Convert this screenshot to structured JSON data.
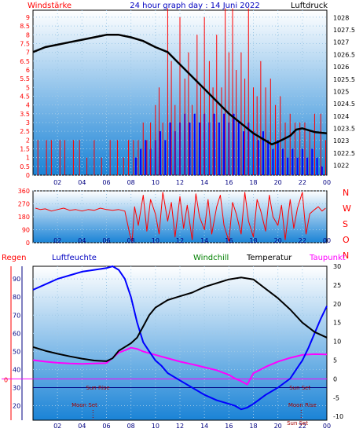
{
  "header": {
    "left_label": "Windstärke",
    "title": "24 hour graph day : 14 Juni 2022",
    "right_label": "Luftdruck"
  },
  "compass_labels": [
    "N",
    "W",
    "S",
    "O",
    "N"
  ],
  "bottom_legend": {
    "regen": "Regen",
    "luftfeuchte": "Luftfeuchte",
    "windchill": "Windchill",
    "temperatur": "Temperatur",
    "taupunkt": "Taupunkt"
  },
  "annotations": {
    "sun_rise": "Sun Rise",
    "moon_set": "Moon Set",
    "sun_set": "Sun Set",
    "moon_rise": "Moon Rise",
    "sun_set_short": "Sun Set",
    "zero_label": "0"
  },
  "colors": {
    "background_top": "#ffffff",
    "background_bottom": "#1a83d6",
    "wind": "#ff0000",
    "gust": "#0000ff",
    "pressure": "#000000",
    "direction": "#ff0000",
    "temperature": "#000000",
    "humidity": "#0000ff",
    "dewpoint": "#ff00ff",
    "windchill": "#008000",
    "rain_axis": "#ff0000",
    "humidity_axis": "#000080"
  },
  "chart_data": [
    {
      "type": "line",
      "x_ticks": [
        "02",
        "04",
        "06",
        "08",
        "10",
        "12",
        "14",
        "16",
        "18",
        "20",
        "22",
        "00"
      ],
      "x_range": [
        0,
        24
      ],
      "y_left": {
        "ticks": [
          "0",
          "0.5",
          "1",
          "1.5",
          "2",
          "2.5",
          "3",
          "3.5",
          "4",
          "4.5",
          "5",
          "5.5",
          "6",
          "6.5",
          "7",
          "7.5",
          "8",
          "8.5",
          "9"
        ],
        "range": [
          0,
          9.4
        ]
      },
      "y_right": {
        "ticks": [
          "1022",
          "1022.5",
          "1023",
          "1023.5",
          "1024",
          "1024.5",
          "1025",
          "1025.5",
          "1026",
          "1026.5",
          "1027",
          "1027.5",
          "1028"
        ],
        "range": [
          1021.6,
          1028.3
        ]
      },
      "series": [
        {
          "name": "Luftdruck",
          "x": [
            0.0,
            1,
            2,
            3,
            4,
            5,
            6,
            7,
            8,
            9,
            10,
            11,
            12,
            13,
            14,
            15,
            16,
            17,
            18,
            19,
            19.5,
            20,
            21,
            21.5,
            22,
            23,
            24
          ],
          "values": [
            1026.6,
            1026.8,
            1026.9,
            1027.0,
            1027.1,
            1027.2,
            1027.3,
            1027.3,
            1027.2,
            1027.05,
            1026.8,
            1026.6,
            1026.1,
            1025.6,
            1025.1,
            1024.6,
            1024.1,
            1023.7,
            1023.3,
            1023.0,
            1022.85,
            1022.95,
            1023.2,
            1023.45,
            1023.5,
            1023.35,
            1023.3
          ]
        },
        {
          "name": "Windstärke",
          "x": [
            0.4,
            1.1,
            1.5,
            2.2,
            2.6,
            3.3,
            3.8,
            4.4,
            5.0,
            5.6,
            6.3,
            6.9,
            7.4,
            7.8,
            8.2,
            8.6,
            9.0,
            9.3,
            9.6,
            10.0,
            10.3,
            10.6,
            11.0,
            11.3,
            11.6,
            12.0,
            12.4,
            12.7,
            13.0,
            13.4,
            13.7,
            14.0,
            14.4,
            14.7,
            15.0,
            15.4,
            15.7,
            16.0,
            16.3,
            16.6,
            17.0,
            17.3,
            17.6,
            18.0,
            18.3,
            18.6,
            19.0,
            19.4,
            19.8,
            20.2,
            20.6,
            21.0,
            21.4,
            21.8,
            22.2,
            22.6,
            23.0,
            23.5,
            23.9
          ],
          "values": [
            2,
            2,
            2,
            2,
            2,
            2,
            2,
            1,
            2,
            1,
            2,
            2,
            1,
            2,
            2,
            2,
            3,
            2,
            3,
            4,
            5,
            3,
            9.5,
            6.5,
            4,
            9,
            5.5,
            7,
            4,
            8,
            5,
            9,
            6.5,
            5,
            8,
            5,
            9.5,
            7,
            9.5,
            6,
            7,
            5.5,
            9.5,
            5,
            4.5,
            6.5,
            5,
            5.5,
            4,
            4.5,
            3,
            3.5,
            3,
            3,
            3,
            2.5,
            3.5,
            3.5,
            2
          ]
        },
        {
          "name": "Böen",
          "x": [
            8.4,
            8.8,
            9.2,
            9.6,
            10.0,
            10.4,
            10.8,
            11.2,
            11.6,
            12.0,
            12.4,
            12.8,
            13.2,
            13.6,
            14.0,
            14.4,
            14.8,
            15.2,
            15.6,
            16.0,
            16.4,
            16.8,
            17.2,
            17.6,
            18.0,
            18.4,
            18.8,
            19.2,
            19.6,
            20.0,
            20.4,
            20.8,
            21.2,
            21.6,
            22.0,
            22.4,
            22.8,
            23.2,
            23.6
          ],
          "values": [
            1,
            1.5,
            2,
            1.5,
            2,
            2.5,
            2,
            3,
            2.5,
            3,
            3.5,
            3,
            3.5,
            3,
            3.5,
            3,
            3.5,
            3,
            3.5,
            3,
            3.5,
            3,
            2.5,
            3,
            2.5,
            2,
            2.5,
            2,
            1.5,
            2,
            1.5,
            1,
            1.5,
            1,
            1.5,
            1,
            1.5,
            1,
            0.5
          ]
        }
      ]
    },
    {
      "type": "line",
      "x_ticks": [
        "02",
        "04",
        "06",
        "08",
        "10",
        "12",
        "14",
        "16",
        "18",
        "20",
        "22",
        "00"
      ],
      "x_range": [
        0,
        24
      ],
      "y_left": {
        "ticks": [
          "0",
          "90",
          "180",
          "270",
          "360"
        ],
        "range": [
          0,
          360
        ]
      },
      "series": [
        {
          "name": "Windrichtung",
          "x": [
            0.2,
            0.6,
            1.0,
            1.5,
            2.0,
            2.5,
            3.0,
            3.5,
            4.0,
            4.5,
            5.0,
            5.5,
            6.0,
            6.5,
            7.0,
            7.5,
            7.9,
            8.1,
            8.3,
            8.6,
            9.0,
            9.3,
            9.6,
            10.0,
            10.3,
            10.6,
            11.0,
            11.3,
            11.6,
            12.0,
            12.3,
            12.6,
            13.0,
            13.3,
            13.6,
            14.0,
            14.3,
            14.6,
            15.0,
            15.3,
            15.6,
            16.0,
            16.3,
            16.6,
            17.0,
            17.3,
            17.6,
            18.0,
            18.3,
            18.6,
            19.0,
            19.3,
            19.6,
            20.0,
            20.3,
            20.6,
            21.0,
            21.3,
            21.6,
            22.0,
            22.3,
            22.6,
            23.0,
            23.3,
            23.6,
            23.9
          ],
          "values": [
            240,
            230,
            235,
            220,
            230,
            240,
            225,
            230,
            220,
            230,
            225,
            240,
            230,
            225,
            230,
            220,
            60,
            10,
            250,
            120,
            330,
            80,
            300,
            200,
            60,
            350,
            150,
            280,
            40,
            320,
            100,
            260,
            20,
            340,
            180,
            90,
            300,
            60,
            250,
            330,
            120,
            10,
            280,
            200,
            60,
            350,
            150,
            40,
            300,
            220,
            80,
            330,
            180,
            120,
            260,
            20,
            300,
            100,
            240,
            350,
            60,
            200,
            230,
            250,
            220,
            240
          ]
        }
      ]
    },
    {
      "type": "line",
      "x_ticks": [
        "02",
        "04",
        "06",
        "08",
        "10",
        "12",
        "14",
        "16",
        "18",
        "20",
        "22",
        "00"
      ],
      "x_range": [
        0,
        24
      ],
      "y_left": {
        "ticks": [
          "20",
          "30",
          "40",
          "50",
          "60",
          "70",
          "80",
          "90"
        ],
        "range": [
          12,
          97
        ]
      },
      "y_right": {
        "ticks": [
          "-10",
          "-5",
          "0",
          "5",
          "10",
          "15",
          "20",
          "25",
          "30"
        ],
        "range": [
          -11,
          30
        ]
      },
      "series": [
        {
          "name": "Luftfeuchte",
          "axis": "left",
          "x": [
            0.0,
            1,
            2,
            3,
            4,
            5,
            6,
            6.5,
            7,
            7.5,
            8,
            8.5,
            9,
            9.5,
            10,
            10.5,
            11,
            12,
            13,
            14,
            15,
            16,
            16.5,
            17,
            17.5,
            18,
            19,
            20,
            21,
            21.5,
            22,
            22.5,
            23,
            23.5,
            24
          ],
          "values": [
            84,
            87,
            90,
            92,
            94,
            95,
            96,
            97,
            95,
            90,
            80,
            66,
            55,
            50,
            45,
            42,
            38,
            34,
            30,
            26,
            23,
            21,
            20,
            18,
            19,
            21,
            26,
            30,
            35,
            40,
            45,
            52,
            60,
            68,
            75
          ]
        },
        {
          "name": "Temperatur",
          "axis": "right",
          "x": [
            0.0,
            1,
            2,
            3,
            4,
            5,
            6,
            6.5,
            7,
            7.5,
            8,
            8.5,
            9,
            9.5,
            10,
            11,
            12,
            13,
            14,
            15,
            16,
            17,
            18,
            19,
            20,
            21,
            22,
            23,
            24
          ],
          "values": [
            8.5,
            7.5,
            6.7,
            6.0,
            5.4,
            4.9,
            4.7,
            5.5,
            7.5,
            8.5,
            9.5,
            11,
            14,
            17,
            19,
            21,
            22,
            23,
            24.5,
            25.5,
            26.5,
            27,
            26.5,
            24,
            21.5,
            18.5,
            15,
            12.5,
            11
          ]
        },
        {
          "name": "Taupunkt",
          "axis": "right",
          "x": [
            0.0,
            1,
            2,
            3,
            4,
            5,
            6,
            7,
            7.5,
            8,
            8.5,
            9,
            10,
            11,
            12,
            13,
            14,
            15,
            16,
            16.5,
            17,
            17.5,
            18,
            19,
            20,
            21,
            22,
            23,
            24
          ],
          "values": [
            5.0,
            4.6,
            4.3,
            4.1,
            4.0,
            4.1,
            4.2,
            7.0,
            7.6,
            8.3,
            8.0,
            7.3,
            6.4,
            5.5,
            4.6,
            3.9,
            3.1,
            2.3,
            1.1,
            0.1,
            -0.6,
            -1.5,
            1.5,
            3.2,
            4.6,
            5.6,
            6.4,
            6.6,
            6.5
          ]
        }
      ]
    }
  ]
}
